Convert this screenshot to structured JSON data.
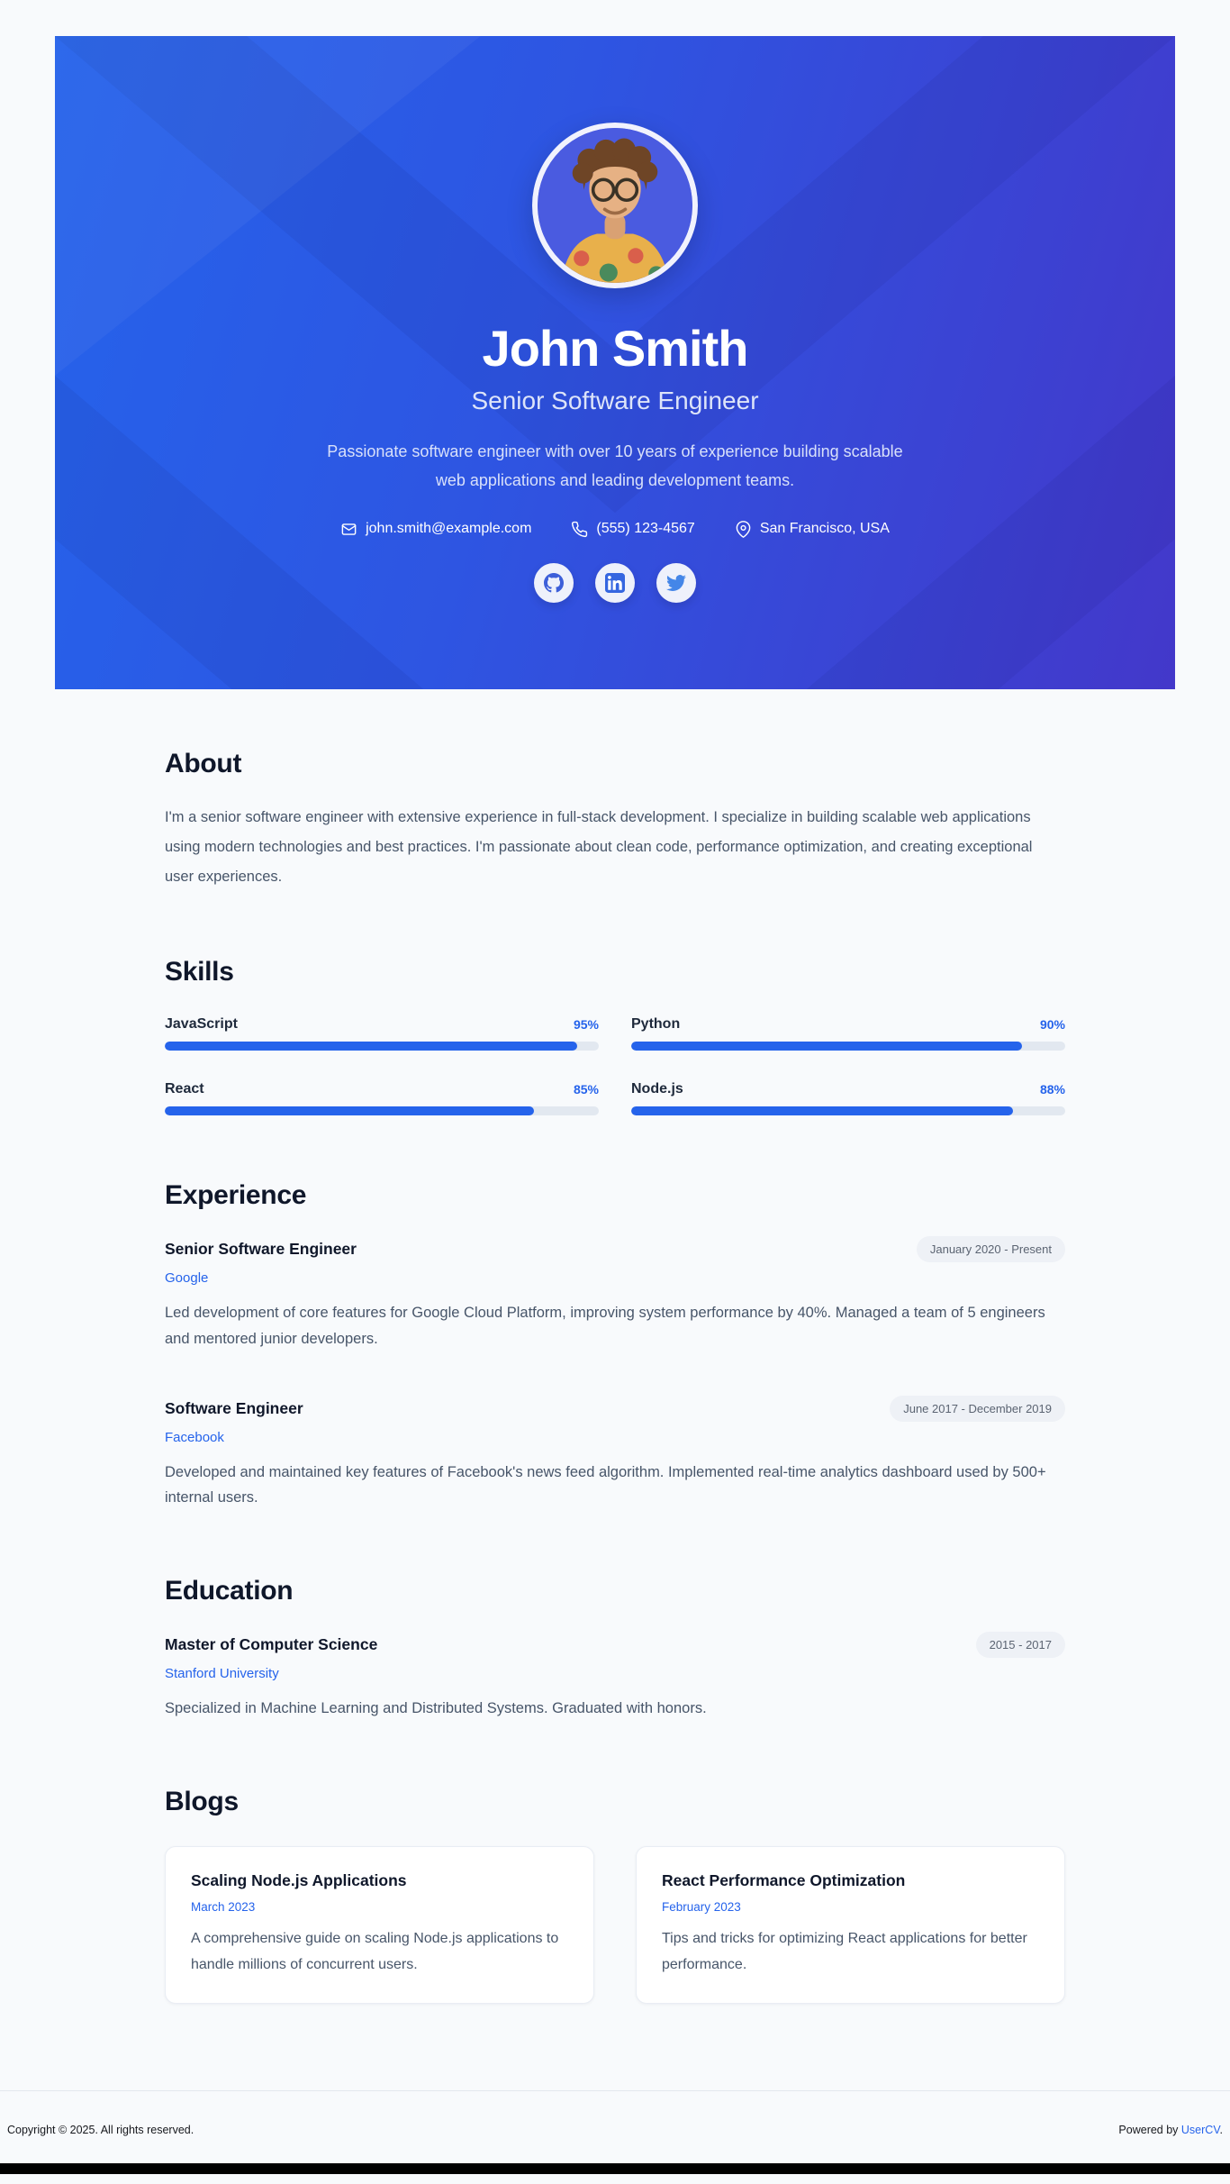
{
  "header": {
    "name": "John Smith",
    "title": "Senior Software Engineer",
    "summary": "Passionate software engineer with over 10 years of experience building scalable web applications and leading development teams.",
    "contacts": {
      "email": "john.smith@example.com",
      "phone": "(555) 123-4567",
      "location": "San Francisco, USA"
    },
    "socials": [
      "GitHub",
      "LinkedIn",
      "Twitter"
    ]
  },
  "about": {
    "heading": "About",
    "body": "I'm a senior software engineer with extensive experience in full-stack development. I specialize in building scalable web applications using modern technologies and best practices. I'm passionate about clean code, performance optimization, and creating exceptional user experiences."
  },
  "skills": {
    "heading": "Skills",
    "items": [
      {
        "label": "JavaScript",
        "percent": 95,
        "percent_label": "95%"
      },
      {
        "label": "Python",
        "percent": 90,
        "percent_label": "90%"
      },
      {
        "label": "React",
        "percent": 85,
        "percent_label": "85%"
      },
      {
        "label": "Node.js",
        "percent": 88,
        "percent_label": "88%"
      }
    ]
  },
  "experience": {
    "heading": "Experience",
    "items": [
      {
        "title": "Senior Software Engineer",
        "company": "Google",
        "period": "January 2020 - Present",
        "description": "Led development of core features for Google Cloud Platform, improving system performance by 40%. Managed a team of 5 engineers and mentored junior developers."
      },
      {
        "title": "Software Engineer",
        "company": "Facebook",
        "period": "June 2017 - December 2019",
        "description": "Developed and maintained key features of Facebook's news feed algorithm. Implemented real-time analytics dashboard used by 500+ internal users."
      }
    ]
  },
  "education": {
    "heading": "Education",
    "items": [
      {
        "degree": "Master of Computer Science",
        "school": "Stanford University",
        "period": "2015 - 2017",
        "description": "Specialized in Machine Learning and Distributed Systems. Graduated with honors."
      }
    ]
  },
  "blogs": {
    "heading": "Blogs",
    "items": [
      {
        "title": "Scaling Node.js Applications",
        "date": "March 2023",
        "description": "A comprehensive guide on scaling Node.js applications to handle millions of concurrent users."
      },
      {
        "title": "React Performance Optimization",
        "date": "February 2023",
        "description": "Tips and tricks for optimizing React applications for better performance."
      }
    ]
  },
  "footer": {
    "copyright": "Copyright © 2025. All rights reserved.",
    "powered_prefix": "Powered by ",
    "powered_link": "UserCV",
    "powered_suffix": "."
  },
  "colors": {
    "accent": "#2563eb",
    "hero_gradient_start": "#2563eb",
    "hero_gradient_end": "#4338ca",
    "heading_text": "#0f172a",
    "body_text": "#475569",
    "badge_bg": "#eef1f6",
    "track": "#e2e8f0",
    "page_bg": "#f8fafc"
  }
}
